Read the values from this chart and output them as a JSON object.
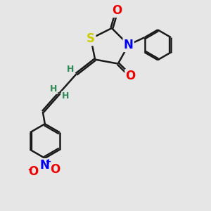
{
  "bg_color": "#e6e6e6",
  "bond_color": "#1a1a1a",
  "bond_width": 1.8,
  "atom_colors": {
    "S": "#cccc00",
    "N_ring": "#0000ee",
    "O": "#ee0000",
    "N_nitro": "#0000ee",
    "O_nitro": "#ee0000",
    "H": "#2e8b57",
    "C": "#1a1a1a"
  }
}
